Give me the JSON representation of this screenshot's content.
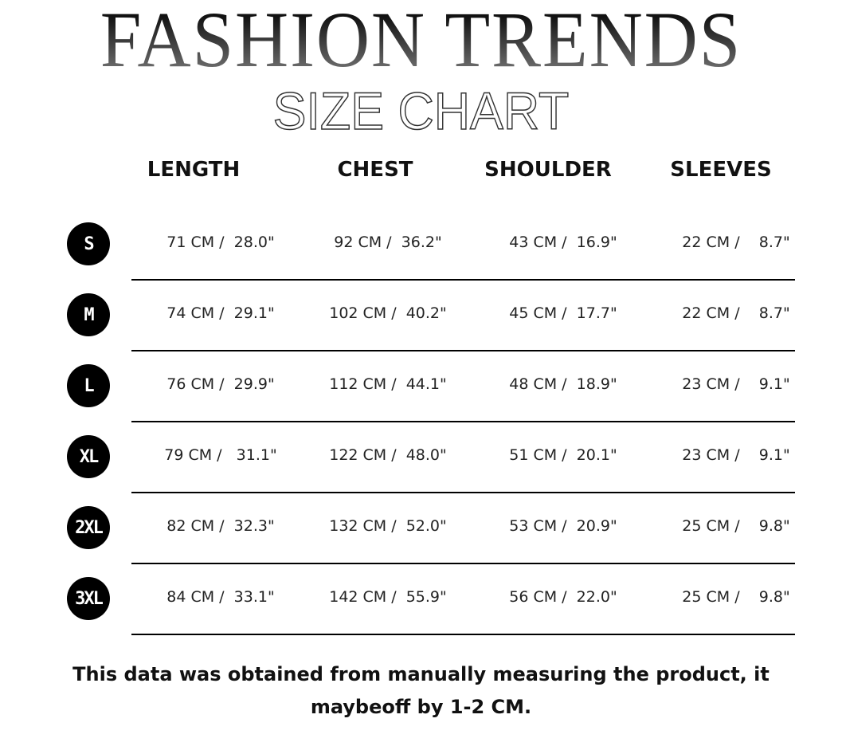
{
  "title": "FASHION TRENDS",
  "subtitle": "SIZE CHART",
  "columns": [
    "LENGTH",
    "CHEST",
    "SHOULDER",
    "SLEEVES"
  ],
  "rows": [
    {
      "size": "S",
      "values": [
        "71 CM /  28.0\"",
        "92 CM /  36.2\"",
        "43 CM /  16.9\"",
        "22 CM /    8.7\""
      ]
    },
    {
      "size": "M",
      "values": [
        "74 CM /  29.1\"",
        "102 CM /  40.2\"",
        "45 CM /  17.7\"",
        "22 CM /    8.7\""
      ]
    },
    {
      "size": "L",
      "values": [
        "76 CM /  29.9\"",
        "112 CM /  44.1\"",
        "48 CM /  18.9\"",
        "23 CM /    9.1\""
      ]
    },
    {
      "size": "XL",
      "values": [
        "79 CM /   31.1\"",
        "122 CM /  48.0\"",
        "51 CM /  20.1\"",
        "23 CM /    9.1\""
      ]
    },
    {
      "size": "2XL",
      "values": [
        "82 CM /  32.3\"",
        "132 CM /  52.0\"",
        "53 CM /  20.9\"",
        "25 CM /    9.8\""
      ]
    },
    {
      "size": "3XL",
      "values": [
        "84 CM /  33.1\"",
        "142 CM /  55.9\"",
        "56 CM /  22.0\"",
        "25 CM /    9.8\""
      ]
    }
  ],
  "note": "This data was obtained from manually measuring the product, it maybeoff by 1-2 CM."
}
